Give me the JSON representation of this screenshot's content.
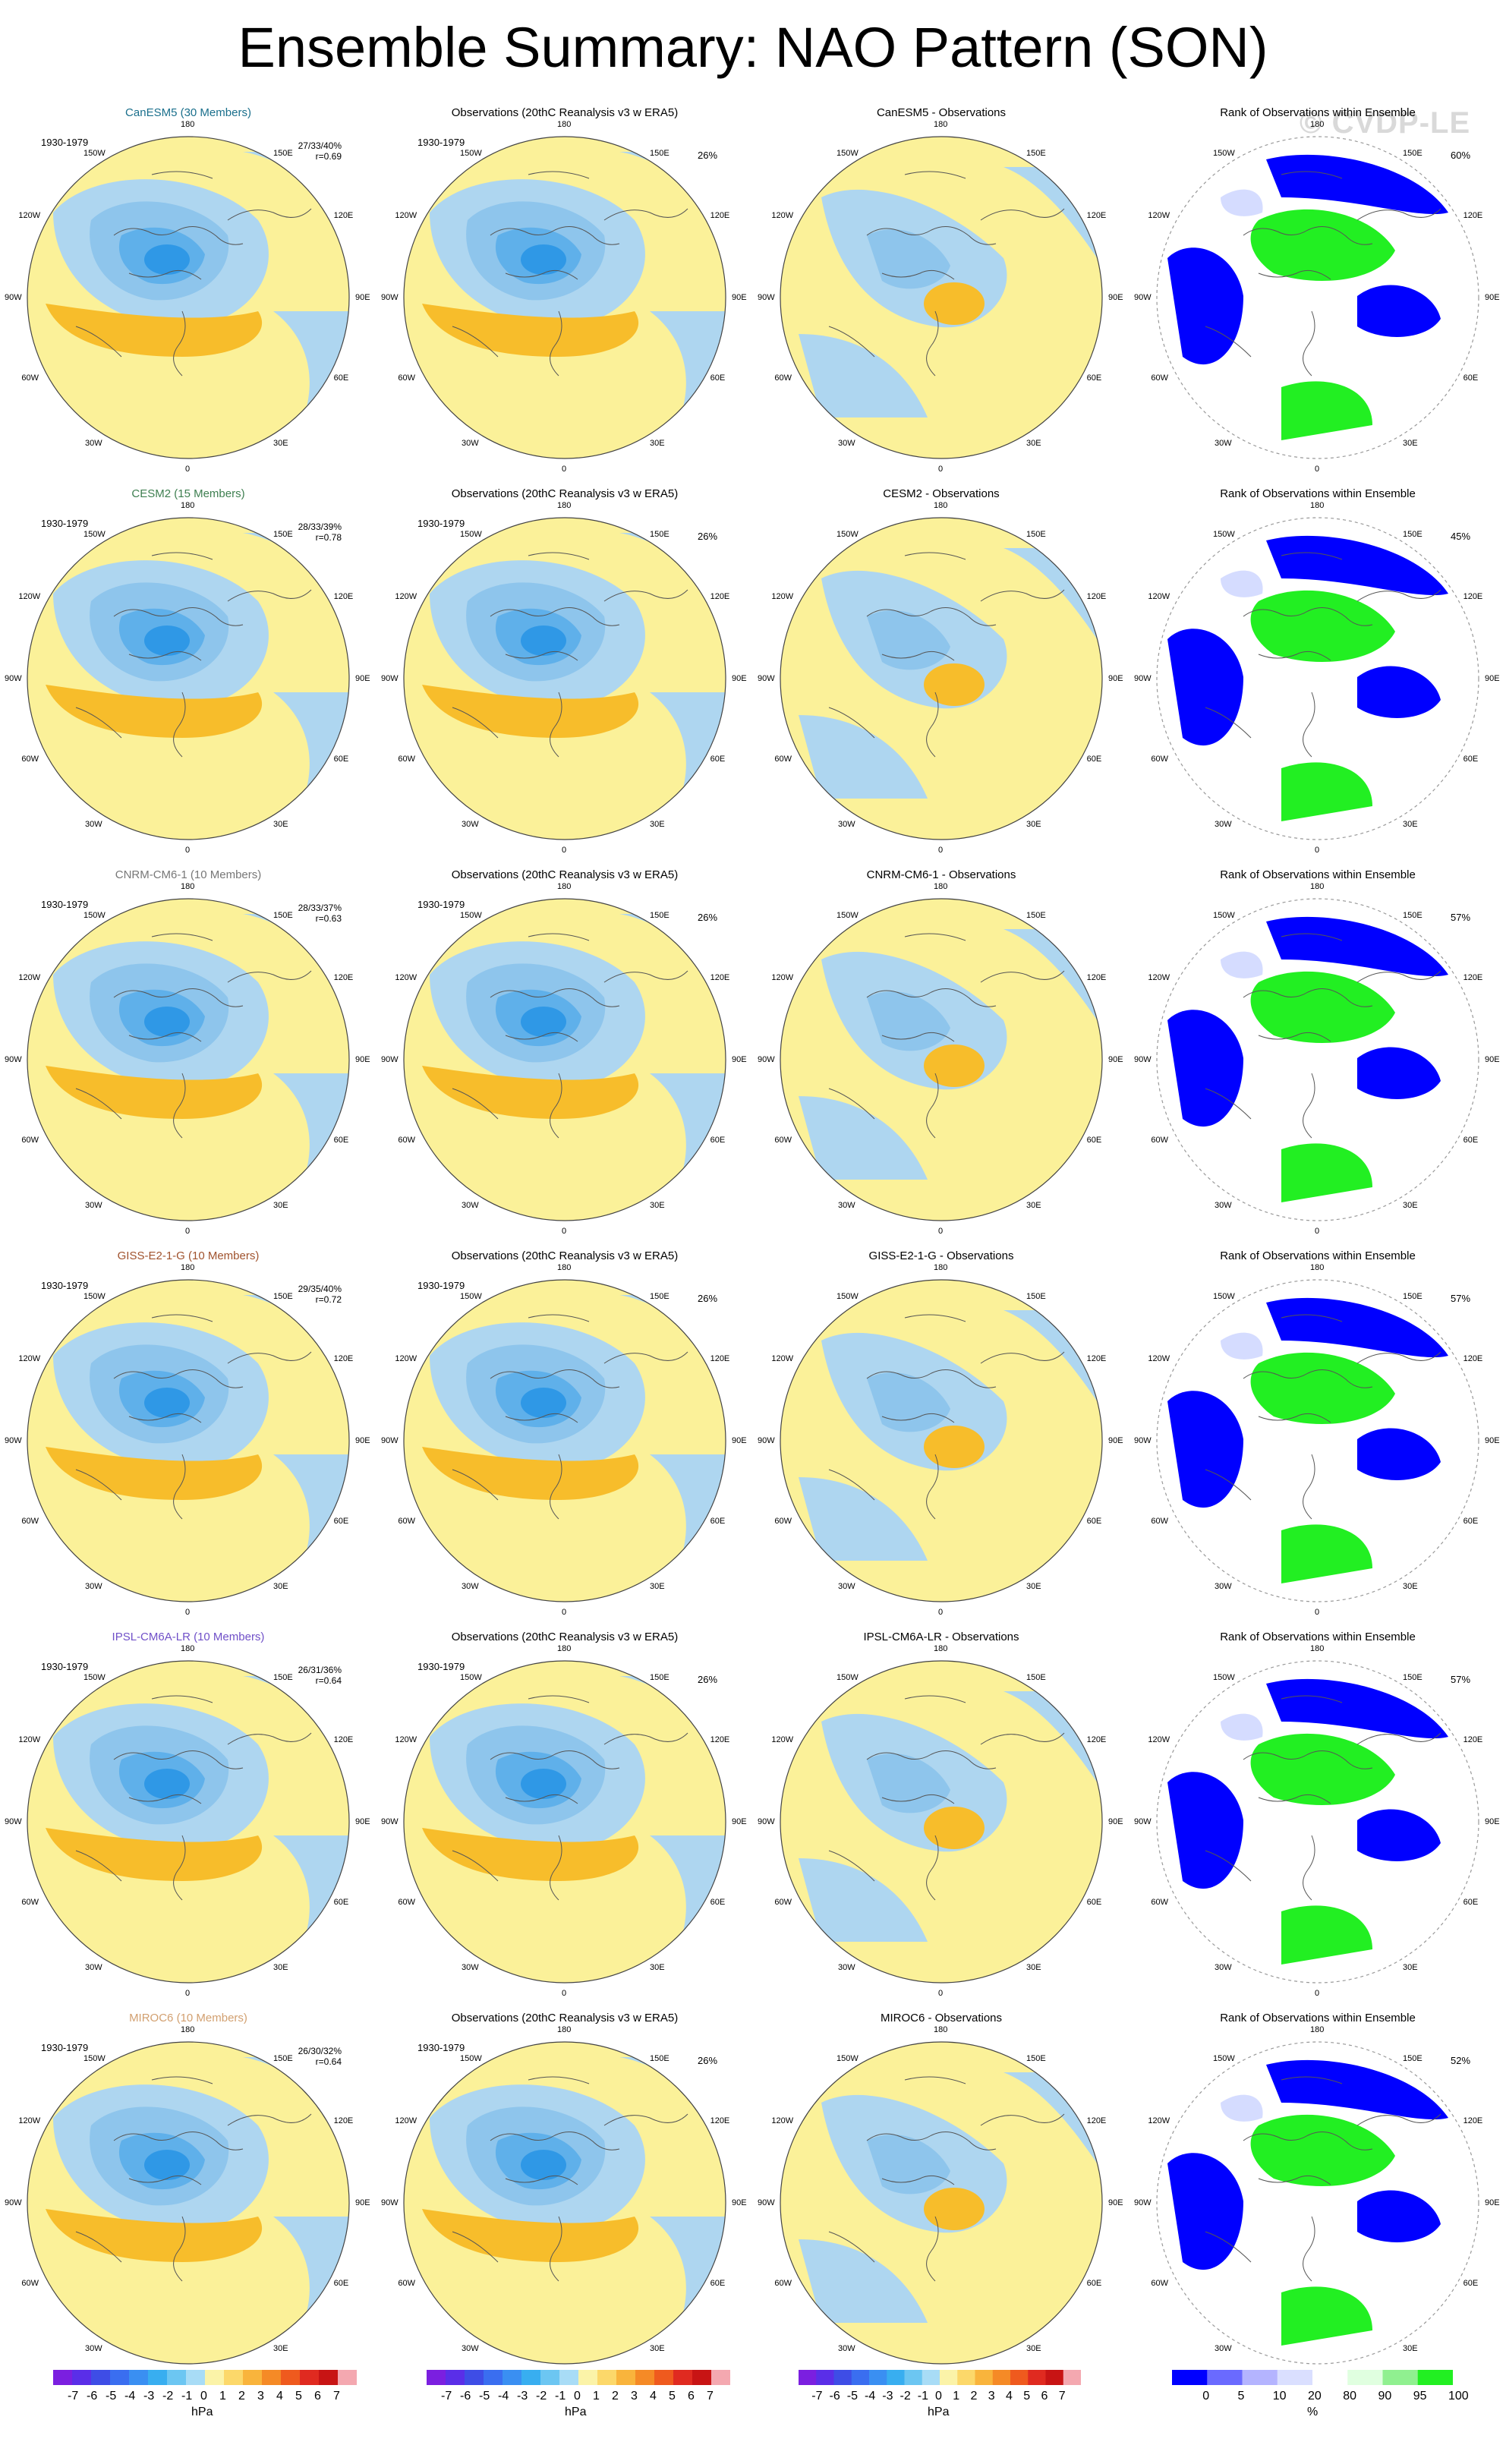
{
  "title": "Ensemble Summary: NAO Pattern (SON)",
  "watermark": "© CVDP-LE",
  "colors": {
    "land_outline": "#555555",
    "neg1": "#aed6f0",
    "neg2": "#8ec5ec",
    "neg3": "#5fb0ea",
    "neg4": "#2f98e6",
    "pos1": "#fbf199",
    "pos2": "#f7bd2b",
    "rank_low": "#0000ff",
    "rank_mid": "#d5dcff",
    "rank_high": "#22ef22"
  },
  "map_labels": {
    "lon_top": "180",
    "lon_bottom": "0",
    "lon_150w": "150W",
    "lon_150e": "150E",
    "lon_120w": "120W",
    "lon_120e": "120E",
    "lon_90w": "90W",
    "lon_90e": "90E",
    "lon_60w": "60W",
    "lon_60e": "60E",
    "lon_30w": "30W",
    "lon_30e": "30E"
  },
  "rows": [
    {
      "model": {
        "title": "CanESM5 (30 Members)",
        "color": "#1a6f8c",
        "period": "1930-1979",
        "stats": "27/33/40%",
        "r": "r=0.69"
      },
      "obs": {
        "title": "Observations (20thC Reanalysis v3 w ERA5)",
        "period": "1930-1979",
        "pct": "26%"
      },
      "diff": {
        "title": "CanESM5 - Observations"
      },
      "rank": {
        "title": "Rank of Observations within Ensemble",
        "pct": "60%"
      }
    },
    {
      "model": {
        "title": "CESM2 (15 Members)",
        "color": "#3e7f50",
        "period": "1930-1979",
        "stats": "28/33/39%",
        "r": "r=0.78"
      },
      "obs": {
        "title": "Observations (20thC Reanalysis v3 w ERA5)",
        "period": "1930-1979",
        "pct": "26%"
      },
      "diff": {
        "title": "CESM2 - Observations"
      },
      "rank": {
        "title": "Rank of Observations within Ensemble",
        "pct": "45%"
      }
    },
    {
      "model": {
        "title": "CNRM-CM6-1 (10 Members)",
        "color": "#777777",
        "period": "1930-1979",
        "stats": "28/33/37%",
        "r": "r=0.63"
      },
      "obs": {
        "title": "Observations (20thC Reanalysis v3 w ERA5)",
        "period": "1930-1979",
        "pct": "26%"
      },
      "diff": {
        "title": "CNRM-CM6-1 - Observations"
      },
      "rank": {
        "title": "Rank of Observations within Ensemble",
        "pct": "57%"
      }
    },
    {
      "model": {
        "title": "GISS-E2-1-G (10 Members)",
        "color": "#a0522d",
        "period": "1930-1979",
        "stats": "29/35/40%",
        "r": "r=0.72"
      },
      "obs": {
        "title": "Observations (20thC Reanalysis v3 w ERA5)",
        "period": "1930-1979",
        "pct": "26%"
      },
      "diff": {
        "title": "GISS-E2-1-G - Observations"
      },
      "rank": {
        "title": "Rank of Observations within Ensemble",
        "pct": "57%"
      }
    },
    {
      "model": {
        "title": "IPSL-CM6A-LR (10 Members)",
        "color": "#7050c8",
        "period": "1930-1979",
        "stats": "26/31/36%",
        "r": "r=0.64"
      },
      "obs": {
        "title": "Observations (20thC Reanalysis v3 w ERA5)",
        "period": "1930-1979",
        "pct": "26%"
      },
      "diff": {
        "title": "IPSL-CM6A-LR - Observations"
      },
      "rank": {
        "title": "Rank of Observations within Ensemble",
        "pct": "57%"
      }
    },
    {
      "model": {
        "title": "MIROC6 (10 Members)",
        "color": "#d2a070",
        "period": "1930-1979",
        "stats": "26/30/32%",
        "r": "r=0.64"
      },
      "obs": {
        "title": "Observations (20thC Reanalysis v3 w ERA5)",
        "period": "1930-1979",
        "pct": "26%"
      },
      "diff": {
        "title": "MIROC6 - Observations"
      },
      "rank": {
        "title": "Rank of Observations within Ensemble",
        "pct": "52%"
      }
    }
  ],
  "colorbars": {
    "hpa": {
      "ticks": [
        "-7",
        "-6",
        "-5",
        "-4",
        "-3",
        "-2",
        "-1",
        "0",
        "1",
        "2",
        "3",
        "4",
        "5",
        "6",
        "7"
      ],
      "unit": "hPa",
      "colors": [
        "#7b1fe0",
        "#5a2ee8",
        "#3e4de6",
        "#3a6ef0",
        "#3a8ff2",
        "#38aef0",
        "#6cc6f2",
        "#a8dcf6",
        "#fbf3a8",
        "#fcd86a",
        "#f9b43c",
        "#f58a26",
        "#ef5a1e",
        "#e02a20",
        "#c81414",
        "#f4a8b0"
      ]
    },
    "rank": {
      "ticks": [
        "0",
        "5",
        "10",
        "20",
        "80",
        "90",
        "95",
        "100"
      ],
      "unit": "%",
      "colors": [
        "#0000ff",
        "#6a6aff",
        "#b4b4ff",
        "#dadfff",
        "#ffffff",
        "#e0ffe0",
        "#90f090",
        "#22ef22"
      ]
    }
  }
}
